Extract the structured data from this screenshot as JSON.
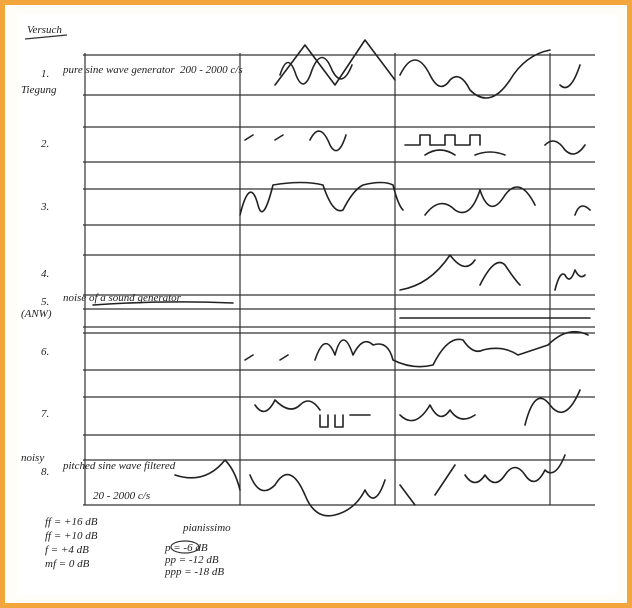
{
  "header": {
    "title": "Versuch"
  },
  "rows": [
    {
      "number": "1.",
      "label": "pure sine wave generator",
      "range": "200 - 2000 c/s",
      "note": "Tiegung"
    },
    {
      "number": "2."
    },
    {
      "number": "3."
    },
    {
      "number": "4."
    },
    {
      "number": "5.",
      "label": "noise of a sound generator",
      "note": "(ANW)"
    },
    {
      "number": "6."
    },
    {
      "number": "7."
    },
    {
      "number": "8.",
      "label": "pitched sine wave filtered",
      "range": "20 - 2000 c/s",
      "note": "noisy"
    }
  ],
  "legend": {
    "loud": [
      "ff = +16 dB",
      "ff = +10 dB",
      "f = +4 dB",
      "mf = 0 dB"
    ],
    "soft_title": "pianissimo",
    "soft": [
      "p = -6 dB",
      "pp = -12 dB",
      "ppp = -18 dB"
    ]
  }
}
